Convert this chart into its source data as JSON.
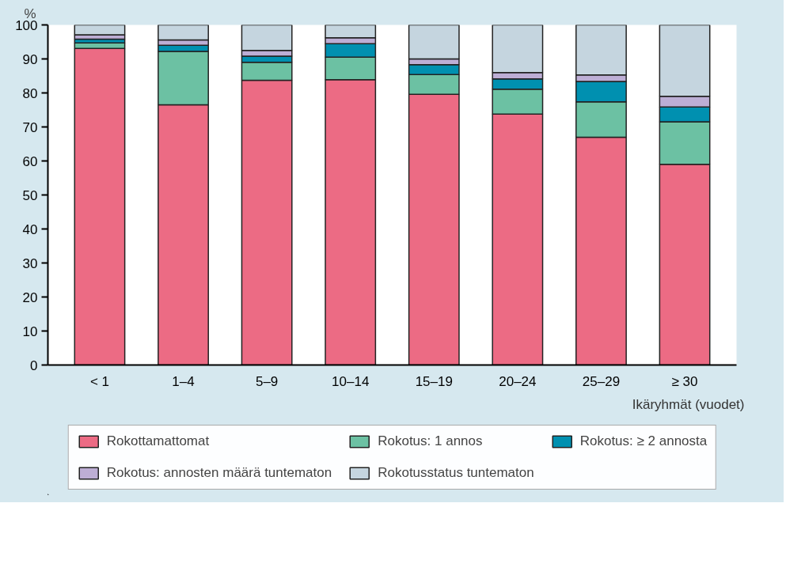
{
  "chart_data": {
    "type": "bar",
    "stacked": true,
    "ylabel": "%",
    "xlabel": "Ikäryhmät (vuodet)",
    "categories": [
      "< 1",
      "1–4",
      "5–9",
      "10–14",
      "15–19",
      "20–24",
      "25–29",
      "≥ 30"
    ],
    "ylim": [
      0,
      100
    ],
    "yticks": [
      0,
      10,
      20,
      30,
      40,
      50,
      60,
      70,
      80,
      90,
      100
    ],
    "grid": false,
    "legend": "bottom",
    "series": [
      {
        "name": "Rokottamattomat",
        "color": "#ec6b84",
        "values": [
          93.1,
          76.5,
          83.7,
          83.9,
          79.6,
          73.8,
          67.0,
          59.0
        ]
      },
      {
        "name": "Rokotus: 1 annos",
        "color": "#6cc1a3",
        "values": [
          1.6,
          15.7,
          5.3,
          6.6,
          5.8,
          7.3,
          10.4,
          12.5
        ]
      },
      {
        "name": "Rokotus: ≥ 2 annosta",
        "color": "#0090b0",
        "values": [
          1.1,
          1.8,
          1.8,
          4.0,
          2.9,
          3.0,
          6.0,
          4.4
        ]
      },
      {
        "name": "Rokotus: annosten määrä tuntematon",
        "color": "#bdaed5",
        "values": [
          1.3,
          1.6,
          1.7,
          1.7,
          1.7,
          1.9,
          1.9,
          3.1
        ]
      },
      {
        "name": "Rokotusstatus tuntematon",
        "color": "#c5d5df",
        "values": [
          2.9,
          4.4,
          7.5,
          3.8,
          10.0,
          14.0,
          14.7,
          21.0
        ]
      }
    ]
  }
}
